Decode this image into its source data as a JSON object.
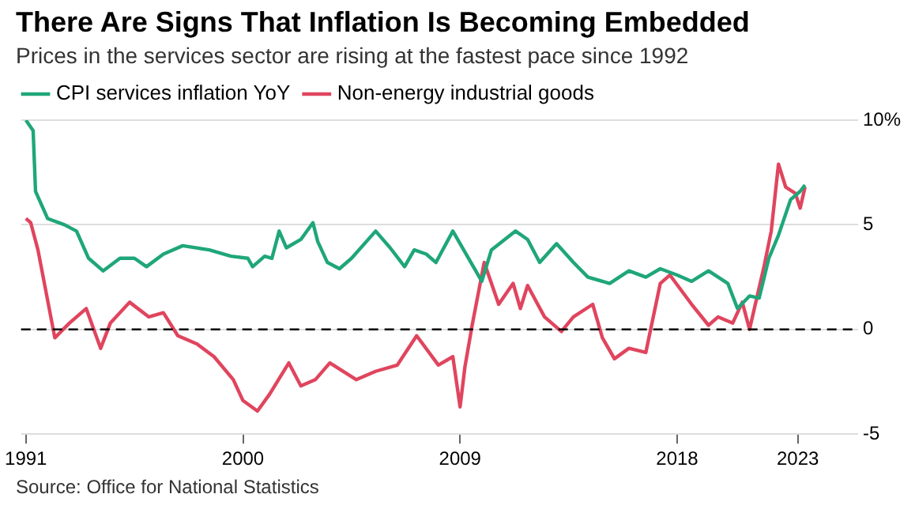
{
  "chart_data": {
    "type": "line",
    "title": "There Are Signs That Inflation Is Becoming Embedded",
    "subtitle": "Prices in the services sector are rising at the fastest pace since 1992",
    "annotations": [
      "Source: Office for National Statistics"
    ],
    "legend": "top left",
    "grid": "y",
    "line_style": "solid",
    "marker": "none",
    "xlim": [
      1990.8,
      2025.5
    ],
    "xticks": [
      1991,
      2000,
      2009,
      2018,
      2023
    ],
    "ylim": [
      -5,
      10
    ],
    "yticks": [
      -5,
      0,
      5,
      {
        "value": 10,
        "label": "10%"
      }
    ],
    "ref_lines": [
      {
        "axis": "y",
        "value": 0,
        "line_style": "dashed",
        "color": "#000000"
      }
    ],
    "series": [
      {
        "name": "CPI services inflation YoY",
        "color": "#1fa67a",
        "x": [
          1991.0,
          1991.3,
          1991.4,
          1991.9,
          1992.6,
          1993.1,
          1993.6,
          1994.2,
          1994.9,
          1995.5,
          1996.0,
          1996.7,
          1997.5,
          1998.6,
          1999.5,
          2000.2,
          2000.4,
          2000.9,
          2001.2,
          2001.5,
          2001.8,
          2002.4,
          2002.9,
          2003.1,
          2003.5,
          2004.0,
          2004.5,
          2005.5,
          2006.1,
          2006.7,
          2007.1,
          2007.6,
          2008.0,
          2008.7,
          2009.9,
          2010.3,
          2011.3,
          2011.8,
          2012.3,
          2013.0,
          2013.7,
          2014.3,
          2015.2,
          2016.0,
          2016.7,
          2017.3,
          2018.0,
          2018.6,
          2019.3,
          2020.1,
          2020.5,
          2021.0,
          2021.4,
          2021.8,
          2022.2,
          2022.7,
          2023.1,
          2023.3
        ],
        "values": [
          10,
          9.5,
          6.6,
          5.3,
          5.0,
          4.7,
          3.4,
          2.8,
          3.4,
          3.4,
          3.0,
          3.6,
          4.0,
          3.8,
          3.5,
          3.4,
          3.0,
          3.5,
          3.4,
          4.7,
          3.9,
          4.3,
          5.1,
          4.2,
          3.2,
          2.9,
          3.4,
          4.7,
          3.9,
          3.0,
          3.8,
          3.6,
          3.2,
          4.7,
          2.3,
          3.8,
          4.7,
          4.3,
          3.2,
          4.1,
          3.2,
          2.5,
          2.2,
          2.8,
          2.5,
          2.9,
          2.6,
          2.3,
          2.8,
          2.2,
          1.0,
          1.6,
          1.5,
          3.4,
          4.5,
          6.2,
          6.6,
          6.9
        ]
      },
      {
        "name": "Non-energy industrial goods",
        "color": "#e0455e",
        "x": [
          1991.0,
          1991.2,
          1991.5,
          1992.2,
          1992.8,
          1993.5,
          1994.1,
          1994.5,
          1995.3,
          1996.1,
          1996.7,
          1997.3,
          1998.1,
          1998.8,
          1999.6,
          2000.0,
          2000.6,
          2001.1,
          2001.9,
          2002.4,
          2003.0,
          2003.6,
          2004.7,
          2005.5,
          2006.4,
          2007.2,
          2008.1,
          2008.7,
          2009.0,
          2009.2,
          2009.5,
          2010.0,
          2010.6,
          2011.2,
          2011.5,
          2011.8,
          2012.5,
          2013.2,
          2013.7,
          2014.5,
          2014.9,
          2015.4,
          2016.0,
          2016.7,
          2017.3,
          2017.7,
          2018.6,
          2019.3,
          2019.7,
          2020.3,
          2020.7,
          2021.0,
          2021.6,
          2021.9,
          2022.2,
          2022.5,
          2022.9,
          2023.1,
          2023.3
        ],
        "values": [
          5.3,
          5.1,
          3.8,
          -0.4,
          0.3,
          1.0,
          -0.9,
          0.3,
          1.3,
          0.6,
          0.8,
          -0.3,
          -0.7,
          -1.3,
          -2.4,
          -3.4,
          -3.9,
          -3.1,
          -1.6,
          -2.7,
          -2.4,
          -1.6,
          -2.4,
          -2.0,
          -1.7,
          -0.3,
          -1.7,
          -1.3,
          -3.7,
          -1.8,
          0.2,
          3.2,
          1.2,
          2.2,
          1.0,
          2.1,
          0.6,
          -0.1,
          0.6,
          1.2,
          -0.4,
          -1.4,
          -0.9,
          -1.1,
          2.2,
          2.6,
          1.2,
          0.2,
          0.6,
          0.3,
          1.3,
          0,
          3.0,
          4.7,
          7.9,
          6.8,
          6.5,
          5.8,
          6.8
        ]
      }
    ]
  }
}
